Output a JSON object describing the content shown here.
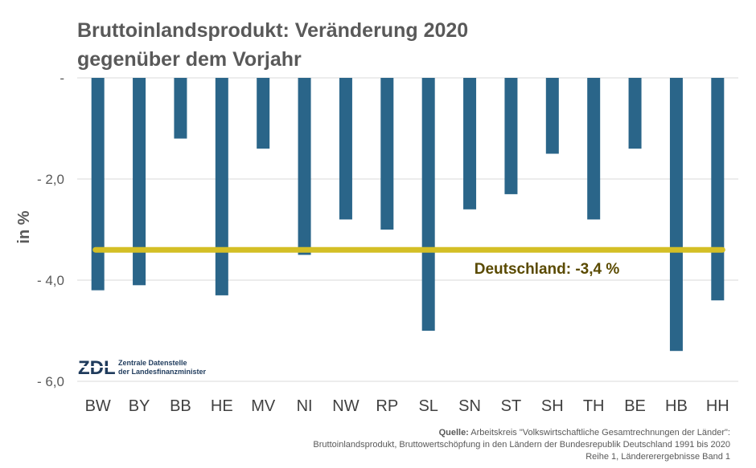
{
  "title": {
    "line1": "Bruttoinlandsprodukt: Veränderung 2020",
    "line2": "gegenüber dem Vorjahr"
  },
  "chart_data": {
    "type": "bar",
    "categories": [
      "BW",
      "BY",
      "BB",
      "HE",
      "MV",
      "NI",
      "NW",
      "RP",
      "SL",
      "SN",
      "ST",
      "SH",
      "TH",
      "BE",
      "HB",
      "HH"
    ],
    "values": [
      -4.2,
      -4.1,
      -1.2,
      -4.3,
      -1.4,
      -3.5,
      -2.8,
      -3.0,
      -5.0,
      -2.6,
      -2.3,
      -1.5,
      -2.8,
      -1.4,
      -5.4,
      -4.4
    ],
    "ylabel": "in %",
    "ylim": [
      -6.0,
      0
    ],
    "yticks": [
      0,
      -2.0,
      -4.0,
      -6.0
    ],
    "ytick_labels": [
      "-",
      "- 2,0",
      "- 4,0",
      "- 6,0"
    ],
    "grid": true,
    "bar_color": "#2a6589",
    "reference_line": {
      "value": -3.4,
      "label": "Deutschland: -3,4 %",
      "color": "#d4bf25"
    }
  },
  "logo": {
    "mark": "ZDL",
    "line1": "Zentrale Datenstelle",
    "line2": "der Landesfinanzminister"
  },
  "source": {
    "prefix": "Quelle:",
    "line1": " Arbeitskreis \"Volkswirtschaftliche Gesamtrechnungen der Länder\":",
    "line2": "Bruttoinlandsprodukt, Bruttowertschöpfung in den Ländern der Bundesrepublik Deutschland 1991 bis 2020",
    "line3": "Reihe 1, Ländererergebnisse Band 1"
  }
}
